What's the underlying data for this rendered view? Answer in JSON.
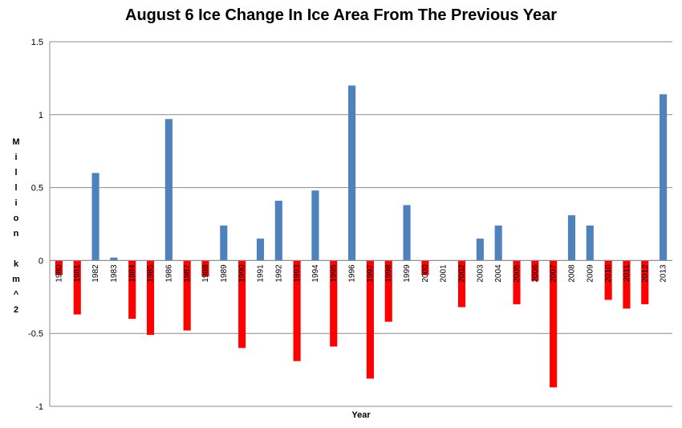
{
  "chart_data": {
    "type": "bar",
    "title": "August 6 Ice Change In Ice Area From The Previous Year",
    "xlabel": "Year",
    "ylabel": "Million km^2",
    "ylim": [
      -1,
      1.5
    ],
    "yticks": [
      "-1",
      "-0.5",
      "0",
      "0.5",
      "1",
      "1.5"
    ],
    "grid": true,
    "legend": "none",
    "colors": {
      "positive": "#4f81bd",
      "negative": "#ff0000"
    },
    "categories": [
      "1980",
      "1981",
      "1982",
      "1983",
      "1984",
      "1985",
      "1986",
      "1987",
      "1988",
      "1989",
      "1990",
      "1991",
      "1992",
      "1993",
      "1994",
      "1995",
      "1996",
      "1997",
      "1998",
      "1999",
      "2000",
      "2001",
      "2002",
      "2003",
      "2004",
      "2005",
      "2006",
      "2007",
      "2008",
      "2009",
      "2010",
      "2011",
      "2012",
      "2013"
    ],
    "values": [
      -0.1,
      -0.37,
      0.6,
      0.02,
      -0.4,
      -0.51,
      0.97,
      -0.48,
      -0.11,
      0.24,
      -0.6,
      0.15,
      0.41,
      -0.69,
      0.48,
      -0.59,
      1.2,
      -0.81,
      -0.42,
      0.38,
      -0.1,
      0.0,
      -0.32,
      0.15,
      0.24,
      -0.3,
      -0.14,
      -0.87,
      0.31,
      0.24,
      -0.27,
      -0.33,
      -0.3,
      1.14
    ]
  }
}
